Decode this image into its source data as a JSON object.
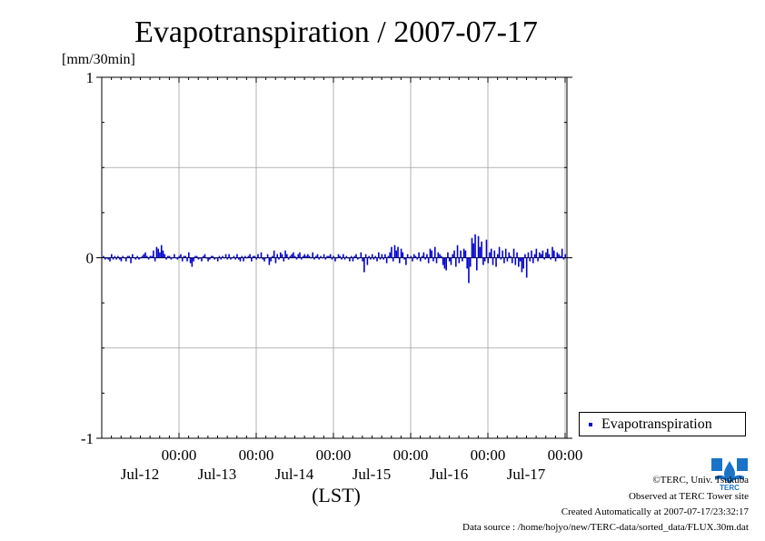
{
  "chart_data": {
    "type": "bar",
    "title": "Evapotranspiration / 2007-07-17",
    "units_label": "[mm/30min]",
    "xlabel": "(LST)",
    "ylim": [
      -1,
      1
    ],
    "yticks": [
      1,
      0,
      -1
    ],
    "grid": true,
    "legend": {
      "placement": "right",
      "entries": [
        "Evapotranspiration"
      ]
    },
    "time_ticks": [
      {
        "time": "00:00",
        "date": "Jul-12"
      },
      {
        "time": "00:00",
        "date": "Jul-13"
      },
      {
        "time": "00:00",
        "date": "Jul-14"
      },
      {
        "time": "00:00",
        "date": "Jul-15"
      },
      {
        "time": "00:00",
        "date": "Jul-16"
      },
      {
        "time": "00:00",
        "date": "Jul-17"
      }
    ],
    "x_range_days": [
      0,
      6
    ],
    "series": [
      {
        "name": "Evapotranspiration",
        "color": "#0000cc",
        "start": "2007-07-11 00:00",
        "interval_minutes": 30,
        "values": [
          -0.01,
          0.01,
          -0.01,
          0.0,
          -0.01,
          -0.02,
          0.02,
          -0.01,
          0.01,
          -0.01,
          0.01,
          -0.01,
          -0.02,
          0.01,
          0.0,
          -0.02,
          0.01,
          0.01,
          -0.03,
          0.02,
          0.0,
          -0.01,
          0.01,
          -0.01,
          0.0,
          0.01,
          0.02,
          0.03,
          0.01,
          -0.01,
          0.01,
          0.01,
          0.04,
          -0.02,
          0.06,
          0.05,
          0.03,
          0.07,
          0.04,
          0.02,
          -0.01,
          0.01,
          0.01,
          -0.01,
          0.0,
          0.02,
          0.0,
          -0.01,
          0.01,
          0.02,
          -0.02,
          0.01,
          0.01,
          -0.02,
          0.03,
          -0.03,
          -0.05,
          -0.02,
          0.01,
          0.01,
          -0.01,
          0.0,
          -0.02,
          0.01,
          0.02,
          0.0,
          -0.02,
          -0.01,
          0.01,
          0.01,
          -0.01,
          0.0,
          -0.02,
          0.01,
          -0.01,
          0.01,
          0.0,
          0.02,
          -0.01,
          0.02,
          -0.01,
          0.0,
          0.01,
          -0.01,
          0.02,
          -0.01,
          -0.02,
          0.01,
          -0.02,
          0.01,
          0.0,
          0.01,
          0.02,
          -0.02,
          0.01,
          0.01,
          -0.01,
          0.02,
          0.0,
          0.03,
          -0.01,
          -0.02,
          0.0,
          0.02,
          -0.04,
          -0.02,
          0.01,
          0.04,
          -0.03,
          0.02,
          -0.01,
          0.03,
          0.02,
          -0.02,
          0.04,
          0.02,
          -0.01,
          0.01,
          0.02,
          0.03,
          0.01,
          -0.01,
          0.02,
          0.03,
          -0.01,
          0.01,
          0.02,
          0.01,
          0.02,
          0.01,
          0.0,
          0.03,
          -0.01,
          0.01,
          0.02,
          -0.01,
          0.01,
          0.0,
          0.02,
          -0.01,
          0.01,
          0.01,
          0.02,
          -0.01,
          0.01,
          -0.02,
          0.0,
          0.02,
          0.01,
          -0.01,
          0.02,
          -0.01,
          0.01,
          0.0,
          -0.02,
          0.01,
          -0.02,
          0.01,
          0.02,
          -0.01,
          0.0,
          0.03,
          -0.02,
          -0.08,
          0.02,
          -0.04,
          0.01,
          -0.01,
          0.02,
          -0.01,
          0.01,
          -0.02,
          0.03,
          -0.01,
          0.02,
          -0.01,
          0.02,
          -0.03,
          0.01,
          0.03,
          0.06,
          -0.02,
          0.07,
          0.04,
          0.06,
          -0.03,
          0.05,
          0.03,
          -0.01,
          -0.04,
          0.02,
          0.0,
          0.01,
          -0.02,
          0.02,
          0.01,
          -0.01,
          0.03,
          -0.02,
          0.01,
          0.03,
          -0.01,
          0.02,
          -0.03,
          0.05,
          0.04,
          -0.02,
          0.06,
          -0.03,
          0.03,
          0.02,
          0.01,
          -0.04,
          -0.06,
          -0.07,
          0.03,
          -0.02,
          -0.04,
          0.02,
          0.04,
          -0.05,
          0.07,
          -0.03,
          0.04,
          -0.02,
          0.05,
          0.04,
          -0.06,
          -0.14,
          -0.05,
          0.11,
          0.08,
          0.13,
          -0.07,
          0.12,
          0.06,
          0.09,
          -0.04,
          -0.02,
          0.1,
          -0.03,
          0.03,
          0.05,
          -0.04,
          0.04,
          -0.05,
          0.02,
          0.06,
          -0.01,
          0.04,
          -0.03,
          0.05,
          -0.02,
          0.03,
          0.01,
          -0.03,
          0.05,
          -0.04,
          0.03,
          -0.05,
          -0.02,
          -0.08,
          -0.06,
          0.02,
          -0.11,
          0.03,
          -0.02,
          0.04,
          -0.03,
          0.02,
          0.05,
          -0.02,
          0.03,
          0.02,
          0.04,
          -0.01,
          0.03,
          0.05,
          0.02,
          -0.01,
          0.06,
          0.04,
          -0.02,
          0.03,
          0.02,
          0.01,
          0.05,
          -0.01,
          0.02,
          0.04,
          0.01,
          0.1,
          0.08,
          0.03,
          -0.02,
          0.05,
          -0.01,
          0.03,
          -0.02,
          0.02,
          0.01,
          -0.01,
          0.03,
          0.02,
          0.05,
          -0.01,
          0.01,
          0.02,
          0.01,
          0.04,
          -0.02,
          0.03,
          0.08,
          0.06,
          -0.02,
          0.01,
          0.03,
          -0.03,
          0.02,
          -0.12,
          -0.06,
          0.1,
          0.04,
          -0.02,
          0.05,
          0.01,
          -0.01,
          0.02,
          0.03,
          0.01,
          -0.01,
          0.02,
          -0.02,
          0.03,
          0.04,
          0.02,
          0.0,
          -0.04,
          0.05,
          0.02,
          0.03,
          -0.01,
          0.02
        ]
      }
    ]
  },
  "footer": {
    "copyright": "©TERC, Univ. Tsukuba",
    "site": "Observed at TERC Tower site",
    "created": "Created Automatically at 2007-07-17/23:32:17",
    "source": "Data source : /home/hojyo/new/TERC-data/sorted_data/FLUX.30m.dat"
  },
  "logo": {
    "text": "TERC",
    "color": "#1a73c8"
  }
}
